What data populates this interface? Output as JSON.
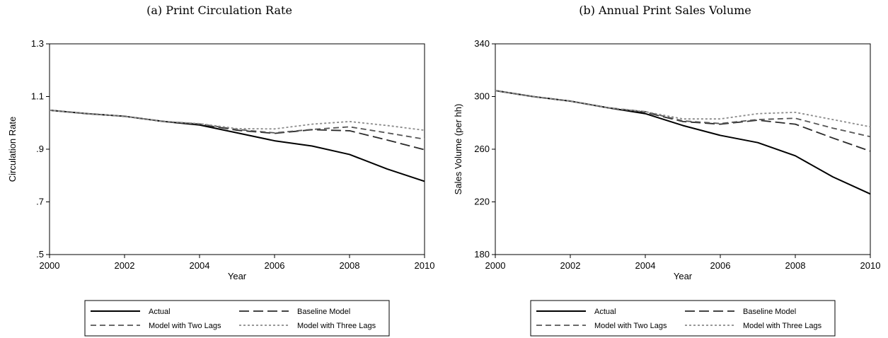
{
  "chart_data": [
    {
      "type": "line",
      "title": "(a) Print Circulation Rate",
      "xlabel": "Year",
      "ylabel": "Circulation Rate",
      "xlim": [
        2000,
        2010
      ],
      "ylim": [
        0.5,
        1.3
      ],
      "xticks": [
        2000,
        2002,
        2004,
        2006,
        2008,
        2010
      ],
      "xtick_labels": [
        "2000",
        "2002",
        "2004",
        "2006",
        "2008",
        "2010"
      ],
      "yticks": [
        0.5,
        0.7,
        0.9,
        1.1,
        1.3
      ],
      "ytick_labels": [
        ".5",
        ".7",
        ".9",
        "1.1",
        "1.3"
      ],
      "grid": false,
      "legend_position": "bottom",
      "x": [
        2000,
        2001,
        2002,
        2003,
        2004,
        2005,
        2006,
        2007,
        2008,
        2009,
        2010
      ],
      "series": [
        {
          "name": "Actual",
          "color": "#000000",
          "style": "solid",
          "values": [
            1.048,
            1.035,
            1.025,
            1.006,
            0.992,
            0.962,
            0.932,
            0.912,
            0.88,
            0.825,
            0.778
          ]
        },
        {
          "name": "Baseline Model",
          "color": "#2a2a2a",
          "style": "longdash",
          "values": [
            1.048,
            1.035,
            1.025,
            1.006,
            0.995,
            0.972,
            0.96,
            0.974,
            0.97,
            0.935,
            0.898
          ]
        },
        {
          "name": "Model with Two Lags",
          "color": "#555555",
          "style": "dash",
          "values": [
            1.048,
            1.035,
            1.025,
            1.006,
            0.996,
            0.975,
            0.962,
            0.975,
            0.985,
            0.962,
            0.938
          ]
        },
        {
          "name": "Model with Three Lags",
          "color": "#8a8a8a",
          "style": "dot",
          "values": [
            1.048,
            1.035,
            1.025,
            1.006,
            0.997,
            0.978,
            0.977,
            0.995,
            1.005,
            0.99,
            0.972
          ]
        }
      ]
    },
    {
      "type": "line",
      "title": "(b) Annual Print Sales Volume",
      "xlabel": "Year",
      "ylabel": "Sales Volume (per hh)",
      "xlim": [
        2000,
        2010
      ],
      "ylim": [
        180,
        340
      ],
      "xticks": [
        2000,
        2002,
        2004,
        2006,
        2008,
        2010
      ],
      "xtick_labels": [
        "2000",
        "2002",
        "2004",
        "2006",
        "2008",
        "2010"
      ],
      "yticks": [
        180,
        220,
        260,
        300,
        340
      ],
      "ytick_labels": [
        "180",
        "220",
        "260",
        "300",
        "340"
      ],
      "grid": false,
      "legend_position": "bottom",
      "x": [
        2000,
        2001,
        2002,
        2003,
        2004,
        2005,
        2006,
        2007,
        2008,
        2009,
        2010
      ],
      "series": [
        {
          "name": "Actual",
          "color": "#000000",
          "style": "solid",
          "values": [
            304.5,
            300.0,
            296.5,
            291.5,
            287.0,
            278.0,
            270.5,
            265.0,
            255.0,
            239.0,
            226.0
          ]
        },
        {
          "name": "Baseline Model",
          "color": "#2a2a2a",
          "style": "longdash",
          "values": [
            304.5,
            300.0,
            296.5,
            291.5,
            288.0,
            281.0,
            279.0,
            282.0,
            279.0,
            268.5,
            258.5
          ]
        },
        {
          "name": "Model with Two Lags",
          "color": "#555555",
          "style": "dash",
          "values": [
            304.5,
            300.0,
            296.5,
            291.5,
            288.5,
            281.5,
            279.5,
            282.5,
            283.5,
            276.0,
            269.5
          ]
        },
        {
          "name": "Model with Three Lags",
          "color": "#8a8a8a",
          "style": "dot",
          "values": [
            304.5,
            300.0,
            296.5,
            291.5,
            288.5,
            283.0,
            283.0,
            287.0,
            288.0,
            282.5,
            277.0
          ]
        }
      ]
    }
  ]
}
